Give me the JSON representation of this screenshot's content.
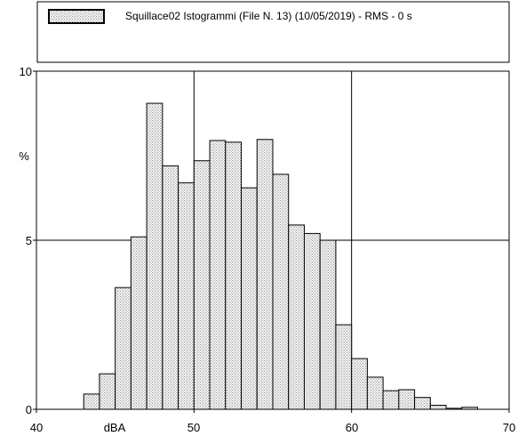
{
  "chart_data": {
    "type": "bar",
    "legend": "Squillace02 Istogrammi  (File N. 13) (10/05/2019) - RMS - 0 s",
    "xlabel": "dBA",
    "ylabel": "%",
    "xlim": [
      40,
      70
    ],
    "ylim": [
      0,
      10
    ],
    "x_ticks": [
      "40",
      "50",
      "60",
      "70"
    ],
    "y_ticks": [
      "0",
      "5",
      "10"
    ],
    "grid": true,
    "bin_width": 1,
    "bins": [
      43,
      44,
      45,
      46,
      47,
      48,
      49,
      50,
      51,
      52,
      53,
      54,
      55,
      56,
      57,
      58,
      59,
      60,
      61,
      62,
      63,
      64,
      65,
      66,
      67
    ],
    "values": [
      0.45,
      1.05,
      3.6,
      5.1,
      9.05,
      7.2,
      6.7,
      7.35,
      7.95,
      7.9,
      6.55,
      7.98,
      6.95,
      5.45,
      5.2,
      5.0,
      2.5,
      1.5,
      0.95,
      0.55,
      0.58,
      0.35,
      0.12,
      0.03,
      0.06
    ]
  }
}
